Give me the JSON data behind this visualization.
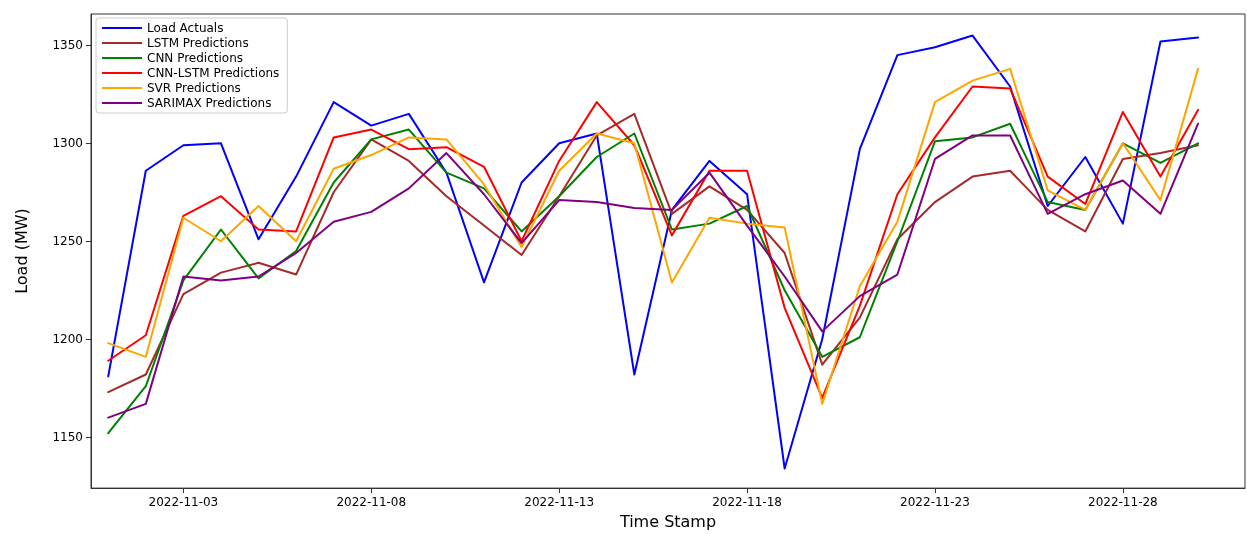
{
  "chart_data": {
    "type": "line",
    "xlabel": "Time Stamp",
    "ylabel": "Load (MW)",
    "x": [
      "2022-11-01",
      "2022-11-02",
      "2022-11-03",
      "2022-11-04",
      "2022-11-05",
      "2022-11-06",
      "2022-11-07",
      "2022-11-08",
      "2022-11-09",
      "2022-11-10",
      "2022-11-11",
      "2022-11-12",
      "2022-11-13",
      "2022-11-14",
      "2022-11-15",
      "2022-11-16",
      "2022-11-17",
      "2022-11-18",
      "2022-11-19",
      "2022-11-20",
      "2022-11-21",
      "2022-11-22",
      "2022-11-23",
      "2022-11-24",
      "2022-11-25",
      "2022-11-26",
      "2022-11-27",
      "2022-11-28",
      "2022-11-29",
      "2022-11-30"
    ],
    "series": [
      {
        "name": "Load Actuals",
        "color": "#0000ff",
        "values": [
          1181,
          1286,
          1299,
          1300,
          1251,
          1283,
          1321,
          1309,
          1315,
          1285,
          1229,
          1280,
          1300,
          1305,
          1182,
          1266,
          1291,
          1274,
          1134,
          1200,
          1297,
          1345,
          1349,
          1355,
          1329,
          1268,
          1293,
          1259,
          1352,
          1354
        ]
      },
      {
        "name": "LSTM Predictions",
        "color": "#a52a2a",
        "values": [
          1173,
          1182,
          1223,
          1234,
          1239,
          1233,
          1275,
          1302,
          1291,
          1273,
          1258,
          1243,
          1273,
          1304,
          1315,
          1264,
          1278,
          1266,
          1244,
          1187,
          1211,
          1251,
          1270,
          1283,
          1286,
          1266,
          1255,
          1292,
          1295,
          1299
        ]
      },
      {
        "name": "CNN Predictions",
        "color": "#008000",
        "values": [
          1152,
          1176,
          1230,
          1256,
          1231,
          1245,
          1280,
          1302,
          1307,
          1285,
          1277,
          1255,
          1273,
          1293,
          1305,
          1256,
          1259,
          1268,
          1225,
          1191,
          1201,
          1250,
          1301,
          1303,
          1310,
          1270,
          1266,
          1300,
          1290,
          1300
        ]
      },
      {
        "name": "CNN-LSTM Predictions",
        "color": "#ff0000",
        "values": [
          1189,
          1202,
          1263,
          1273,
          1256,
          1255,
          1303,
          1307,
          1297,
          1298,
          1288,
          1250,
          1291,
          1321,
          1299,
          1253,
          1286,
          1286,
          1216,
          1170,
          1217,
          1274,
          1303,
          1329,
          1328,
          1283,
          1269,
          1316,
          1283,
          1317
        ]
      },
      {
        "name": "SVR Predictions",
        "color": "#ffa500",
        "values": [
          1198,
          1191,
          1262,
          1250,
          1268,
          1250,
          1287,
          1294,
          1303,
          1302,
          1279,
          1247,
          1286,
          1305,
          1300,
          1229,
          1262,
          1259,
          1257,
          1167,
          1227,
          1260,
          1321,
          1332,
          1338,
          1276,
          1266,
          1300,
          1271,
          1338
        ]
      },
      {
        "name": "SARIMAX Predictions",
        "color": "#800080",
        "values": [
          1160,
          1167,
          1232,
          1230,
          1232,
          1244,
          1260,
          1265,
          1277,
          1295,
          1274,
          1249,
          1271,
          1270,
          1267,
          1266,
          1285,
          1258,
          1232,
          1204,
          1222,
          1233,
          1292,
          1304,
          1304,
          1264,
          1274,
          1281,
          1264,
          1310
        ]
      }
    ],
    "xlim": [
      "2022-10-31T13:00",
      "2022-12-01T06:00"
    ],
    "xticks": [
      "2022-11-03",
      "2022-11-08",
      "2022-11-13",
      "2022-11-18",
      "2022-11-23",
      "2022-11-28"
    ],
    "ylim": [
      1124,
      1366
    ],
    "yticks": [
      1150,
      1200,
      1250,
      1300,
      1350
    ],
    "grid": false,
    "legend": "top left",
    "marker": "none",
    "line_style": "solid"
  }
}
